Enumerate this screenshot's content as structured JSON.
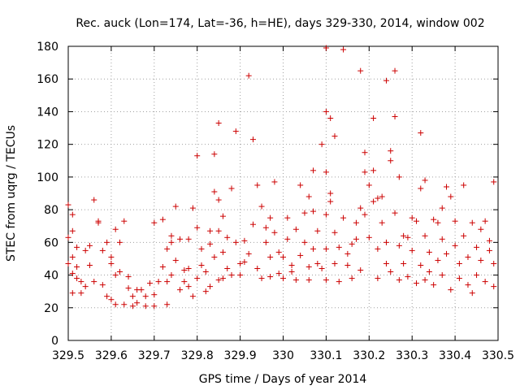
{
  "chart_data": {
    "type": "scatter",
    "title": "Rec. auck (Lon=174, Lat=-36, h=HE), days 329-330, 2014, window 002",
    "xlabel": "GPS time / Days of year 2014",
    "ylabel": "STEC from uqrg / TECUs",
    "xlim": [
      329.5,
      330.5
    ],
    "ylim": [
      0,
      180
    ],
    "xticks": [
      329.5,
      329.6,
      329.7,
      329.8,
      329.9,
      330.0,
      330.1,
      330.2,
      330.3,
      330.4,
      330.5
    ],
    "xtick_labels": [
      "329.5",
      "329.6",
      "329.7",
      "329.8",
      "329.9",
      "330",
      "330.1",
      "330.2",
      "330.3",
      "330.4",
      "330.5"
    ],
    "yticks": [
      0,
      20,
      40,
      60,
      80,
      100,
      120,
      140,
      160,
      180
    ],
    "ytick_labels": [
      "0",
      "20",
      "40",
      "60",
      "80",
      "100",
      "120",
      "140",
      "160",
      "180"
    ],
    "grid": true,
    "marker": "+",
    "series": [
      {
        "name": "STEC",
        "color": "#cc0000",
        "points": [
          [
            329.5,
            83
          ],
          [
            329.51,
            77
          ],
          [
            329.51,
            67
          ],
          [
            329.5,
            63
          ],
          [
            329.52,
            57
          ],
          [
            329.51,
            51
          ],
          [
            329.5,
            47
          ],
          [
            329.52,
            45
          ],
          [
            329.51,
            41
          ],
          [
            329.52,
            38
          ],
          [
            329.51,
            29
          ],
          [
            329.53,
            29
          ],
          [
            329.53,
            36
          ],
          [
            329.54,
            33
          ],
          [
            329.54,
            55
          ],
          [
            329.55,
            46
          ],
          [
            329.55,
            58
          ],
          [
            329.56,
            86
          ],
          [
            329.56,
            36
          ],
          [
            329.57,
            73
          ],
          [
            329.57,
            72
          ],
          [
            329.58,
            55
          ],
          [
            329.58,
            34
          ],
          [
            329.59,
            60
          ],
          [
            329.59,
            27
          ],
          [
            329.6,
            51
          ],
          [
            329.6,
            47
          ],
          [
            329.6,
            25
          ],
          [
            329.61,
            68
          ],
          [
            329.61,
            40
          ],
          [
            329.61,
            22
          ],
          [
            329.62,
            42
          ],
          [
            329.62,
            60
          ],
          [
            329.63,
            73
          ],
          [
            329.63,
            22
          ],
          [
            329.64,
            39
          ],
          [
            329.64,
            32
          ],
          [
            329.65,
            21
          ],
          [
            329.65,
            27
          ],
          [
            329.66,
            31
          ],
          [
            329.66,
            23
          ],
          [
            329.67,
            31
          ],
          [
            329.68,
            27
          ],
          [
            329.68,
            21
          ],
          [
            329.69,
            35
          ],
          [
            329.7,
            21
          ],
          [
            329.7,
            28
          ],
          [
            329.7,
            72
          ],
          [
            329.71,
            36
          ],
          [
            329.72,
            74
          ],
          [
            329.72,
            45
          ],
          [
            329.73,
            36
          ],
          [
            329.73,
            22
          ],
          [
            329.73,
            56
          ],
          [
            329.74,
            60
          ],
          [
            329.74,
            40
          ],
          [
            329.74,
            64
          ],
          [
            329.75,
            82
          ],
          [
            329.75,
            49
          ],
          [
            329.76,
            31
          ],
          [
            329.76,
            62
          ],
          [
            329.77,
            36
          ],
          [
            329.77,
            43
          ],
          [
            329.78,
            33
          ],
          [
            329.78,
            62
          ],
          [
            329.78,
            44
          ],
          [
            329.79,
            81
          ],
          [
            329.79,
            27
          ],
          [
            329.8,
            38
          ],
          [
            329.8,
            113
          ],
          [
            329.8,
            69
          ],
          [
            329.81,
            56
          ],
          [
            329.81,
            46
          ],
          [
            329.82,
            30
          ],
          [
            329.82,
            42
          ],
          [
            329.83,
            59
          ],
          [
            329.83,
            67
          ],
          [
            329.83,
            33
          ],
          [
            329.84,
            51
          ],
          [
            329.84,
            91
          ],
          [
            329.84,
            114
          ],
          [
            329.85,
            37
          ],
          [
            329.85,
            86
          ],
          [
            329.85,
            67
          ],
          [
            329.85,
            133
          ],
          [
            329.86,
            54
          ],
          [
            329.86,
            76
          ],
          [
            329.86,
            38
          ],
          [
            329.87,
            63
          ],
          [
            329.87,
            44
          ],
          [
            329.88,
            40
          ],
          [
            329.88,
            93
          ],
          [
            329.89,
            60
          ],
          [
            329.89,
            128
          ],
          [
            329.9,
            47
          ],
          [
            329.9,
            40
          ],
          [
            329.91,
            61
          ],
          [
            329.91,
            48
          ],
          [
            329.92,
            162
          ],
          [
            329.92,
            53
          ],
          [
            329.93,
            71
          ],
          [
            329.93,
            123
          ],
          [
            329.94,
            44
          ],
          [
            329.94,
            95
          ],
          [
            329.95,
            82
          ],
          [
            329.95,
            38
          ],
          [
            329.96,
            69
          ],
          [
            329.96,
            60
          ],
          [
            329.97,
            51
          ],
          [
            329.97,
            39
          ],
          [
            329.97,
            75
          ],
          [
            329.98,
            66
          ],
          [
            329.98,
            97
          ],
          [
            329.99,
            41
          ],
          [
            329.99,
            54
          ],
          [
            330.0,
            51
          ],
          [
            330.0,
            38
          ],
          [
            330.01,
            75
          ],
          [
            330.01,
            62
          ],
          [
            330.02,
            46
          ],
          [
            330.02,
            42
          ],
          [
            330.03,
            37
          ],
          [
            330.03,
            68
          ],
          [
            330.04,
            95
          ],
          [
            330.04,
            52
          ],
          [
            330.05,
            78
          ],
          [
            330.05,
            60
          ],
          [
            330.06,
            88
          ],
          [
            330.06,
            45
          ],
          [
            330.06,
            37
          ],
          [
            330.07,
            104
          ],
          [
            330.07,
            79
          ],
          [
            330.07,
            56
          ],
          [
            330.08,
            47
          ],
          [
            330.08,
            67
          ],
          [
            330.09,
            120
          ],
          [
            330.09,
            44
          ],
          [
            330.1,
            179
          ],
          [
            330.1,
            103
          ],
          [
            330.1,
            77
          ],
          [
            330.1,
            140
          ],
          [
            330.1,
            56
          ],
          [
            330.1,
            37
          ],
          [
            330.11,
            136
          ],
          [
            330.11,
            90
          ],
          [
            330.11,
            85
          ],
          [
            330.12,
            125
          ],
          [
            330.12,
            66
          ],
          [
            330.12,
            47
          ],
          [
            330.13,
            57
          ],
          [
            330.13,
            36
          ],
          [
            330.14,
            178
          ],
          [
            330.14,
            75
          ],
          [
            330.15,
            46
          ],
          [
            330.15,
            53
          ],
          [
            330.16,
            59
          ],
          [
            330.16,
            38
          ],
          [
            330.17,
            72
          ],
          [
            330.17,
            62
          ],
          [
            330.18,
            165
          ],
          [
            330.18,
            81
          ],
          [
            330.18,
            43
          ],
          [
            330.19,
            115
          ],
          [
            330.19,
            103
          ],
          [
            330.19,
            77
          ],
          [
            330.2,
            95
          ],
          [
            330.2,
            63
          ],
          [
            330.21,
            136
          ],
          [
            330.21,
            104
          ],
          [
            330.21,
            85
          ],
          [
            330.22,
            56
          ],
          [
            330.22,
            38
          ],
          [
            330.22,
            87
          ],
          [
            330.23,
            88
          ],
          [
            330.23,
            72
          ],
          [
            330.24,
            159
          ],
          [
            330.24,
            60
          ],
          [
            330.24,
            47
          ],
          [
            330.25,
            116
          ],
          [
            330.25,
            110
          ],
          [
            330.25,
            42
          ],
          [
            330.26,
            165
          ],
          [
            330.26,
            137
          ],
          [
            330.26,
            78
          ],
          [
            330.27,
            58
          ],
          [
            330.27,
            37
          ],
          [
            330.27,
            100
          ],
          [
            330.28,
            64
          ],
          [
            330.28,
            47
          ],
          [
            330.29,
            63
          ],
          [
            330.29,
            39
          ],
          [
            330.3,
            75
          ],
          [
            330.3,
            55
          ],
          [
            330.31,
            73
          ],
          [
            330.31,
            35
          ],
          [
            330.32,
            127
          ],
          [
            330.32,
            93
          ],
          [
            330.32,
            46
          ],
          [
            330.33,
            98
          ],
          [
            330.33,
            64
          ],
          [
            330.33,
            37
          ],
          [
            330.34,
            54
          ],
          [
            330.34,
            42
          ],
          [
            330.35,
            74
          ],
          [
            330.35,
            34
          ],
          [
            330.36,
            49
          ],
          [
            330.36,
            72
          ],
          [
            330.37,
            81
          ],
          [
            330.37,
            62
          ],
          [
            330.37,
            40
          ],
          [
            330.38,
            53
          ],
          [
            330.38,
            94
          ],
          [
            330.39,
            31
          ],
          [
            330.39,
            88
          ],
          [
            330.4,
            58
          ],
          [
            330.4,
            73
          ],
          [
            330.41,
            38
          ],
          [
            330.41,
            47
          ],
          [
            330.42,
            95
          ],
          [
            330.42,
            64
          ],
          [
            330.43,
            34
          ],
          [
            330.43,
            51
          ],
          [
            330.44,
            72
          ],
          [
            330.44,
            29
          ],
          [
            330.45,
            57
          ],
          [
            330.45,
            40
          ],
          [
            330.46,
            68
          ],
          [
            330.46,
            49
          ],
          [
            330.47,
            73
          ],
          [
            330.47,
            36
          ],
          [
            330.48,
            61
          ],
          [
            330.48,
            55
          ],
          [
            330.49,
            97
          ],
          [
            330.49,
            47
          ],
          [
            330.49,
            33
          ]
        ]
      }
    ]
  }
}
